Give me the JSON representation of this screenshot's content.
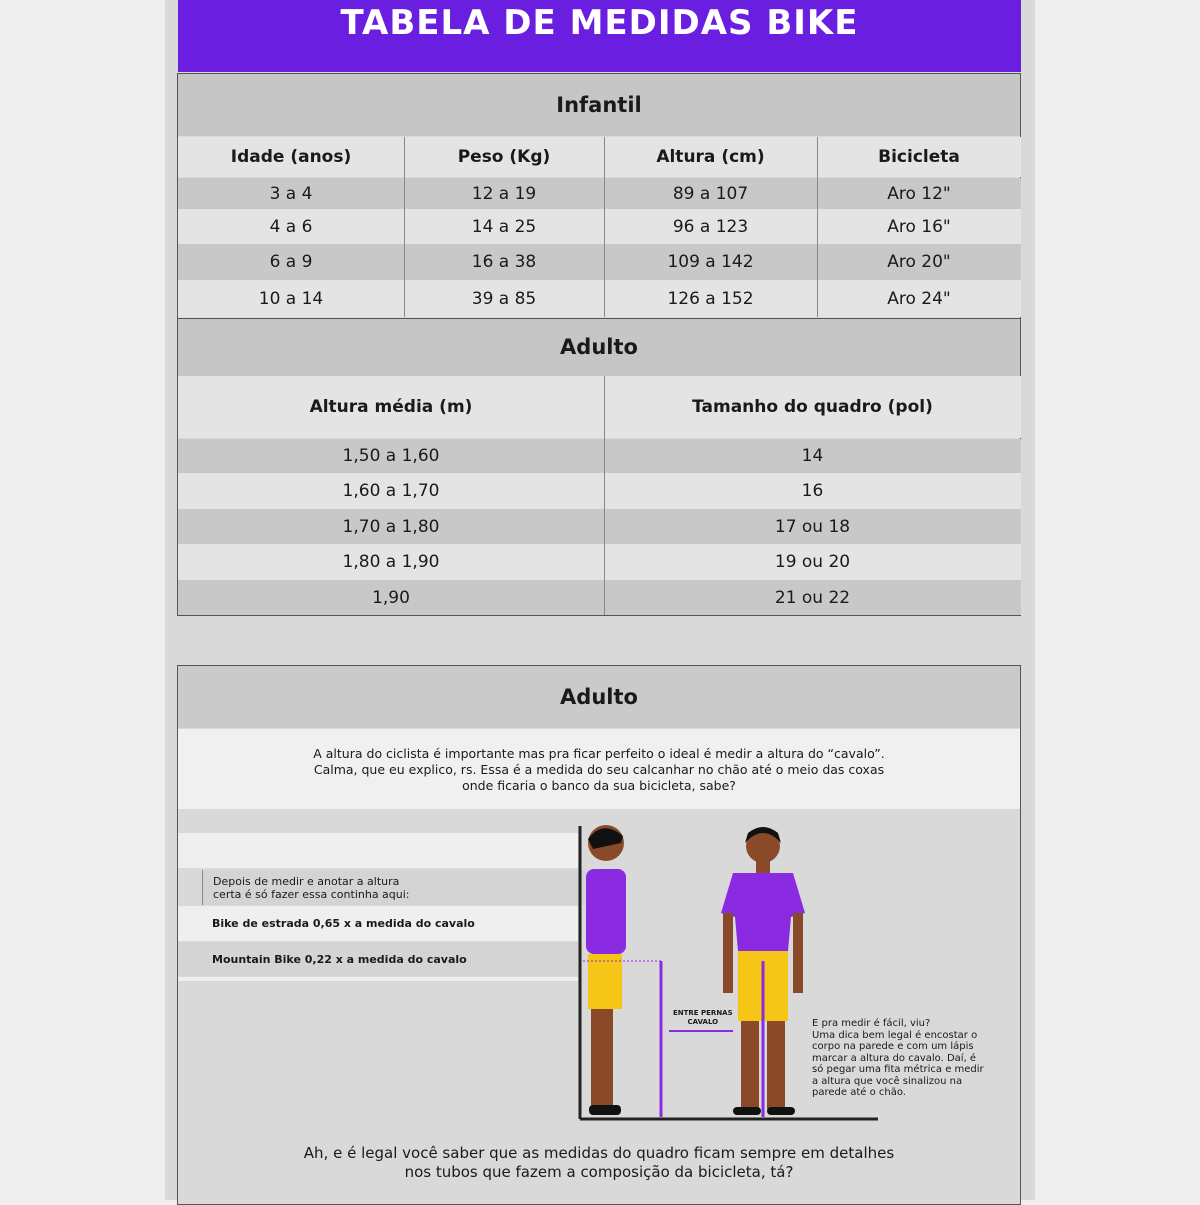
{
  "title": "TABELA DE MEDIDAS BIKE",
  "infantil": {
    "title": "Infantil",
    "headers": [
      "Idade (anos)",
      "Peso (Kg)",
      "Altura (cm)",
      "Bicicleta"
    ],
    "rows": [
      [
        "3 a 4",
        "12 a 19",
        "89 a 107",
        "Aro 12\""
      ],
      [
        "4 a 6",
        "14 a 25",
        "96 a 123",
        "Aro 16\""
      ],
      [
        "6 a 9",
        "16 a 38",
        "109 a 142",
        "Aro 20\""
      ],
      [
        "10 a 14",
        "39 a 85",
        "126 a 152",
        "Aro 24\""
      ]
    ]
  },
  "adulto": {
    "title": "Adulto",
    "headers": [
      "Altura média (m)",
      "Tamanho do quadro (pol)"
    ],
    "rows": [
      [
        "1,50 a 1,60",
        "14"
      ],
      [
        "1,60 a 1,70",
        "16"
      ],
      [
        "1,70 a 1,80",
        "17 ou 18"
      ],
      [
        "1,80 a 1,90",
        "19 ou 20"
      ],
      [
        "1,90",
        "21 ou 22"
      ]
    ]
  },
  "guide": {
    "title": "Adulto",
    "intro": [
      "A altura do ciclista é importante mas pra ficar perfeito o ideal é medir a altura do “cavalo”.",
      "Calma, que eu explico, rs. Essa é a medida do seu calcanhar no chão até o meio das coxas",
      "onde ficaria o banco da sua bicicleta, sabe?"
    ],
    "calc_intro": [
      "Depois de medir e anotar a altura",
      "certa é só fazer essa continha aqui:"
    ],
    "road": "Bike de estrada 0,65 x a medida do cavalo",
    "mtb": "Mountain Bike 0,22 x a medida do cavalo",
    "label": [
      "ENTRE PERNAS",
      "CAVALO"
    ],
    "tip": [
      "E pra medir é fácil, viu?",
      "Uma dica bem legal é encostar o",
      "corpo na parede e com um lápis",
      "marcar a altura do cavalo. Daí, é",
      "só pegar uma fita métrica e medir",
      "a altura que você sinalizou na",
      "parede até o chão."
    ],
    "footer": [
      "Ah, e é legal você saber que as medidas do quadro ficam sempre em detalhes",
      "nos tubos que fazem a composição da bicicleta, tá?"
    ]
  },
  "colors": {
    "accent": "#6a1fe0",
    "shorts": "#f5c518",
    "skin": "#8a4a2a"
  }
}
